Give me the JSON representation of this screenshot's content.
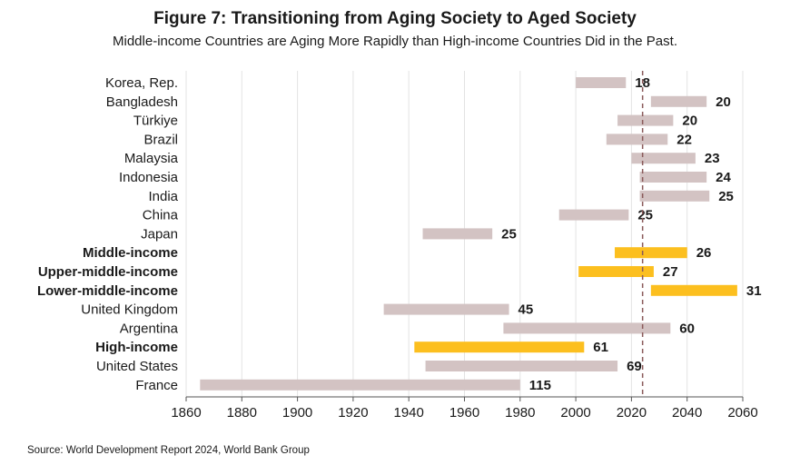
{
  "title": "Figure 7:  Transitioning from Aging Society to Aged Society",
  "subtitle": "Middle-income Countries are Aging More Rapidly than High-income Countries Did in the Past.",
  "source": "Source: World Development Report 2024, World Bank Group",
  "colors": {
    "country": "#d3c3c3",
    "income_group": "#fcbf1f",
    "reference_line": "#8a5a5a",
    "grid": "#e3e3e3"
  },
  "chart_data": {
    "type": "bar",
    "orientation": "horizontal-floating",
    "title": "Figure 7:  Transitioning from Aging Society to Aged Society",
    "subtitle": "Middle-income Countries are Aging More Rapidly than High-income Countries Did in the Past.",
    "xlim": [
      1860,
      2060
    ],
    "xticks": [
      "1860",
      "1880",
      "1900",
      "1920",
      "1940",
      "1960",
      "1980",
      "2000",
      "2020",
      "2040",
      "2060"
    ],
    "reference_line_x": 2024,
    "grid": true,
    "rows": [
      {
        "label": "Korea, Rep.",
        "start": 2000,
        "end": 2018,
        "value_label": "18",
        "group": false
      },
      {
        "label": "Bangladesh",
        "start": 2027,
        "end": 2047,
        "value_label": "20",
        "group": false
      },
      {
        "label": "Türkiye",
        "start": 2015,
        "end": 2035,
        "value_label": "20",
        "group": false
      },
      {
        "label": "Brazil",
        "start": 2011,
        "end": 2033,
        "value_label": "22",
        "group": false
      },
      {
        "label": "Malaysia",
        "start": 2020,
        "end": 2043,
        "value_label": "23",
        "group": false
      },
      {
        "label": "Indonesia",
        "start": 2023,
        "end": 2047,
        "value_label": "24",
        "group": false
      },
      {
        "label": "India",
        "start": 2023,
        "end": 2048,
        "value_label": "25",
        "group": false
      },
      {
        "label": "China",
        "start": 1994,
        "end": 2019,
        "value_label": "25",
        "group": false
      },
      {
        "label": "Japan",
        "start": 1945,
        "end": 1970,
        "value_label": "25",
        "group": false
      },
      {
        "label": "Middle-income",
        "start": 2014,
        "end": 2040,
        "value_label": "26",
        "group": true
      },
      {
        "label": "Upper-middle-income",
        "start": 2001,
        "end": 2028,
        "value_label": "27",
        "group": true
      },
      {
        "label": "Lower-middle-income",
        "start": 2027,
        "end": 2058,
        "value_label": "31",
        "group": true
      },
      {
        "label": "United Kingdom",
        "start": 1931,
        "end": 1976,
        "value_label": "45",
        "group": false
      },
      {
        "label": "Argentina",
        "start": 1974,
        "end": 2034,
        "value_label": "60",
        "group": false
      },
      {
        "label": "High-income",
        "start": 1942,
        "end": 2003,
        "value_label": "61",
        "group": true
      },
      {
        "label": "United States",
        "start": 1946,
        "end": 2015,
        "value_label": "69",
        "group": false
      },
      {
        "label": "France",
        "start": 1865,
        "end": 1980,
        "value_label": "115",
        "group": false
      }
    ]
  }
}
